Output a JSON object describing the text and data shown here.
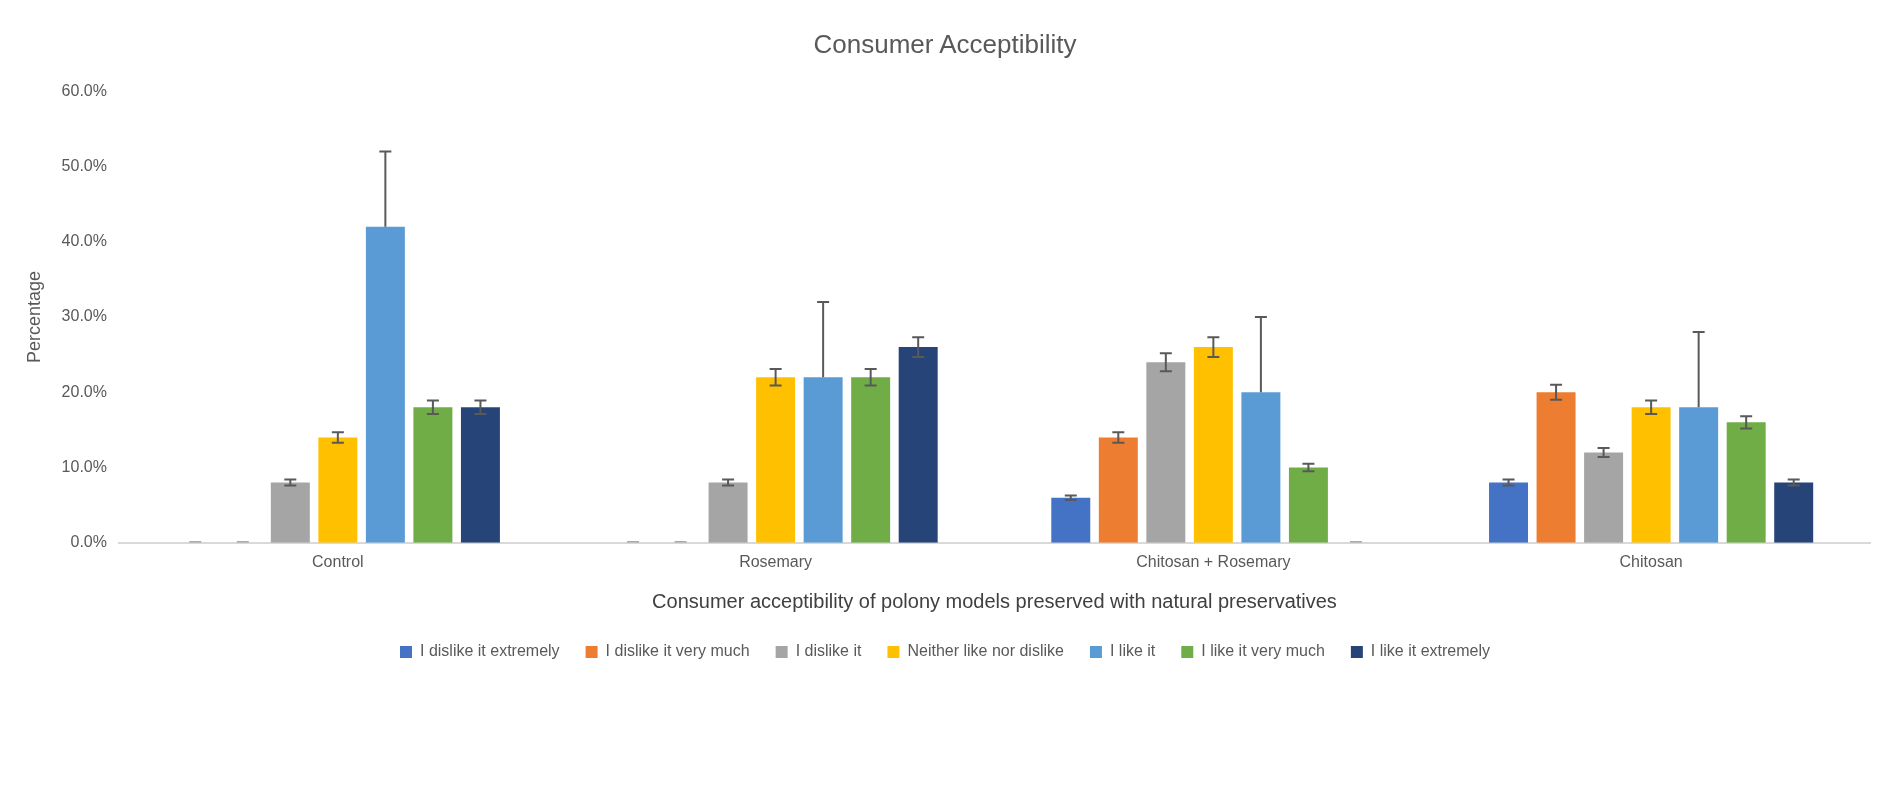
{
  "chart_data": {
    "type": "bar",
    "title": "Consumer Acceptibility",
    "xlabel": "Consumer acceptibility of polony models preserved with natural preservatives",
    "ylabel": "Percentage",
    "categories": [
      "Control",
      "Rosemary",
      "Chitosan + Rosemary",
      "Chitosan"
    ],
    "series": [
      {
        "name": "I dislike it extremely",
        "color": "#4472c4",
        "values": [
          0,
          0,
          6,
          8
        ],
        "errors": [
          null,
          null,
          0.3,
          0.4
        ]
      },
      {
        "name": "I dislike it very much",
        "color": "#ed7d31",
        "values": [
          0,
          0,
          14,
          20
        ],
        "errors": [
          null,
          null,
          0.7,
          1
        ]
      },
      {
        "name": "I dislike it",
        "color": "#a5a5a5",
        "values": [
          8,
          8,
          24,
          12
        ],
        "errors": [
          0.4,
          0.4,
          1.2,
          0.6
        ]
      },
      {
        "name": "Neither like nor dislike",
        "color": "#ffc000",
        "values": [
          14,
          22,
          26,
          18
        ],
        "errors": [
          0.7,
          1.1,
          1.3,
          0.9
        ]
      },
      {
        "name": "I like it",
        "color": "#5b9bd5",
        "values": [
          42,
          22,
          20,
          18
        ],
        "errors": [
          [
            42,
            52
          ],
          [
            22,
            32
          ],
          [
            20,
            30
          ],
          [
            18,
            28
          ]
        ]
      },
      {
        "name": "I like it very much",
        "color": "#70ad47",
        "values": [
          18,
          22,
          10,
          16
        ],
        "errors": [
          0.9,
          1.1,
          0.5,
          0.8
        ]
      },
      {
        "name": "I like it extremely",
        "color": "#264478",
        "values": [
          18,
          26,
          0,
          8
        ],
        "errors": [
          0.9,
          1.3,
          null,
          0.4
        ]
      }
    ],
    "ylim": [
      0,
      60
    ],
    "yticks": [
      {
        "value": 0,
        "label": "0.0%"
      },
      {
        "value": 10,
        "label": "10.0%"
      },
      {
        "value": 20,
        "label": "20.0%"
      },
      {
        "value": 30,
        "label": "30.0%"
      },
      {
        "value": 40,
        "label": "40.0%"
      },
      {
        "value": 50,
        "label": "50.0%"
      },
      {
        "value": 60,
        "label": "60.0%"
      }
    ],
    "grid": false,
    "legend": "bottom"
  }
}
